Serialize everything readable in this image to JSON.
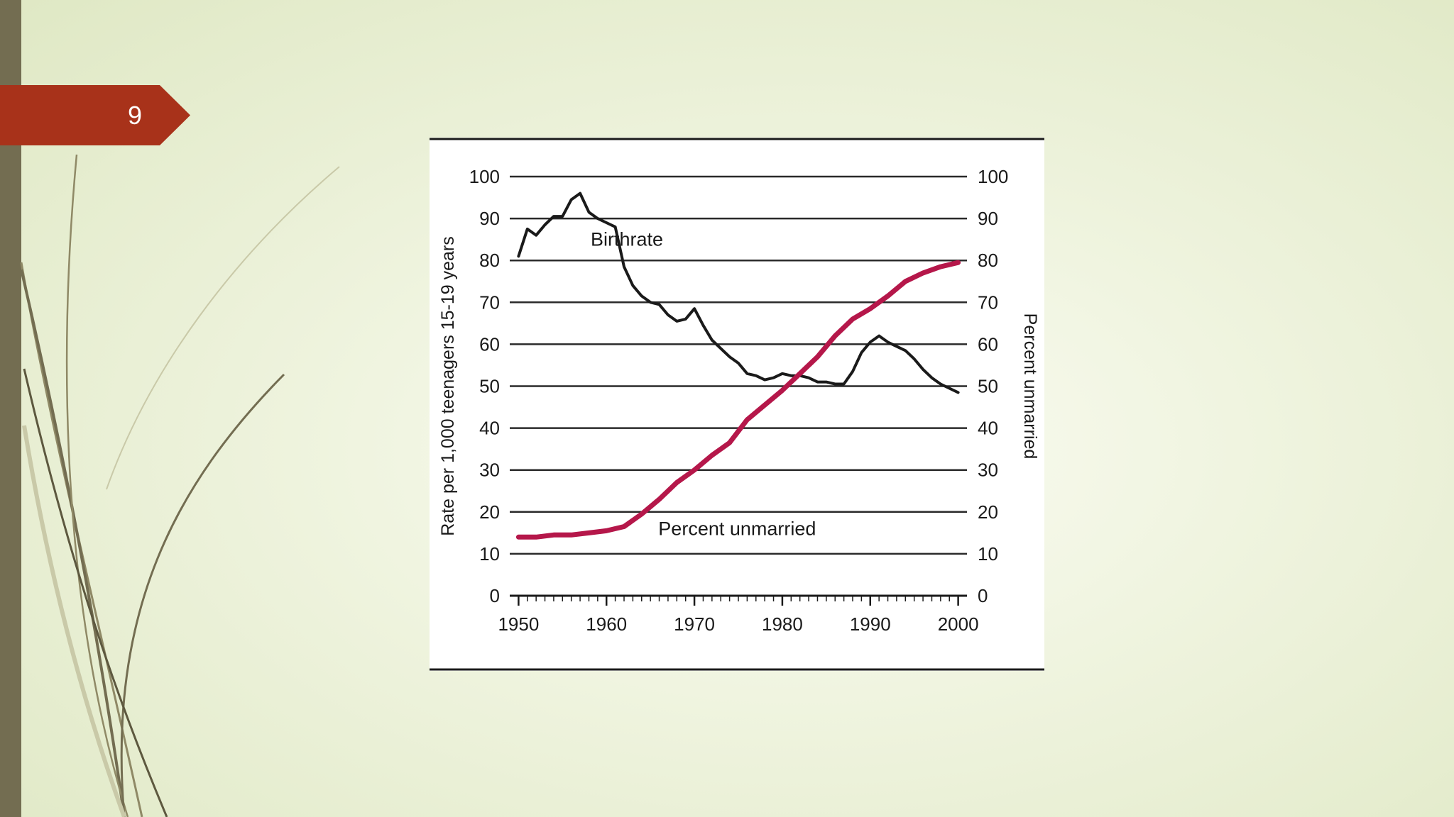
{
  "slide": {
    "number": "9",
    "accent_color": "#a8321a",
    "sidebar_color": "#736d51"
  },
  "chart_data": {
    "type": "line",
    "title": "",
    "xlabel": "",
    "ylabel": "Rate per 1,000 teenagers 15-19 years",
    "y2label": "Percent unmarried",
    "xlim": [
      1949,
      2001
    ],
    "ylim": [
      0,
      100
    ],
    "y2lim": [
      0,
      100
    ],
    "x_ticks": [
      1950,
      1960,
      1970,
      1980,
      1990,
      2000
    ],
    "y_ticks": [
      0,
      10,
      20,
      30,
      40,
      50,
      60,
      70,
      80,
      90,
      100
    ],
    "grid": true,
    "series": [
      {
        "name": "Birthrate",
        "color": "#1a1a1a",
        "axis": "left",
        "label_position": [
          1958.2,
          85
        ],
        "points": [
          [
            1950,
            81
          ],
          [
            1951,
            87.5
          ],
          [
            1952,
            86
          ],
          [
            1953,
            88.5
          ],
          [
            1954,
            90.5
          ],
          [
            1955,
            90.5
          ],
          [
            1956,
            94.5
          ],
          [
            1957,
            96
          ],
          [
            1958,
            91.5
          ],
          [
            1959,
            90
          ],
          [
            1960,
            89
          ],
          [
            1961,
            88
          ],
          [
            1962,
            78.5
          ],
          [
            1963,
            74
          ],
          [
            1964,
            71.5
          ],
          [
            1965,
            70
          ],
          [
            1966,
            69.5
          ],
          [
            1967,
            67
          ],
          [
            1968,
            65.5
          ],
          [
            1969,
            66
          ],
          [
            1970,
            68.5
          ],
          [
            1971,
            64.5
          ],
          [
            1972,
            61
          ],
          [
            1973,
            59
          ],
          [
            1974,
            57
          ],
          [
            1975,
            55.5
          ],
          [
            1976,
            53
          ],
          [
            1977,
            52.5
          ],
          [
            1978,
            51.5
          ],
          [
            1979,
            52
          ],
          [
            1980,
            53
          ],
          [
            1981,
            52.5
          ],
          [
            1982,
            52.5
          ],
          [
            1983,
            52
          ],
          [
            1984,
            51
          ],
          [
            1985,
            51
          ],
          [
            1986,
            50.5
          ],
          [
            1987,
            50.5
          ],
          [
            1988,
            53.5
          ],
          [
            1989,
            58
          ],
          [
            1990,
            60.5
          ],
          [
            1991,
            62
          ],
          [
            1992,
            60.5
          ],
          [
            1993,
            59.5
          ],
          [
            1994,
            58.5
          ],
          [
            1995,
            56.5
          ],
          [
            1996,
            54
          ],
          [
            1997,
            52
          ],
          [
            1998,
            50.5
          ],
          [
            1999,
            49.5
          ],
          [
            2000,
            48.5
          ]
        ]
      },
      {
        "name": "Percent unmarried",
        "color": "#b5174a",
        "axis": "right",
        "label_position": [
          1965.9,
          16
        ],
        "points": [
          [
            1950,
            14
          ],
          [
            1952,
            14
          ],
          [
            1954,
            14.5
          ],
          [
            1956,
            14.5
          ],
          [
            1958,
            15
          ],
          [
            1960,
            15.5
          ],
          [
            1962,
            16.5
          ],
          [
            1964,
            19.5
          ],
          [
            1966,
            23
          ],
          [
            1968,
            27
          ],
          [
            1970,
            30
          ],
          [
            1972,
            33.5
          ],
          [
            1974,
            36.5
          ],
          [
            1976,
            42
          ],
          [
            1978,
            45.5
          ],
          [
            1980,
            49
          ],
          [
            1982,
            53
          ],
          [
            1984,
            57
          ],
          [
            1986,
            62
          ],
          [
            1988,
            66
          ],
          [
            1990,
            68.5
          ],
          [
            1992,
            71.5
          ],
          [
            1994,
            75
          ],
          [
            1996,
            77
          ],
          [
            1998,
            78.5
          ],
          [
            2000,
            79.5
          ]
        ]
      }
    ]
  }
}
